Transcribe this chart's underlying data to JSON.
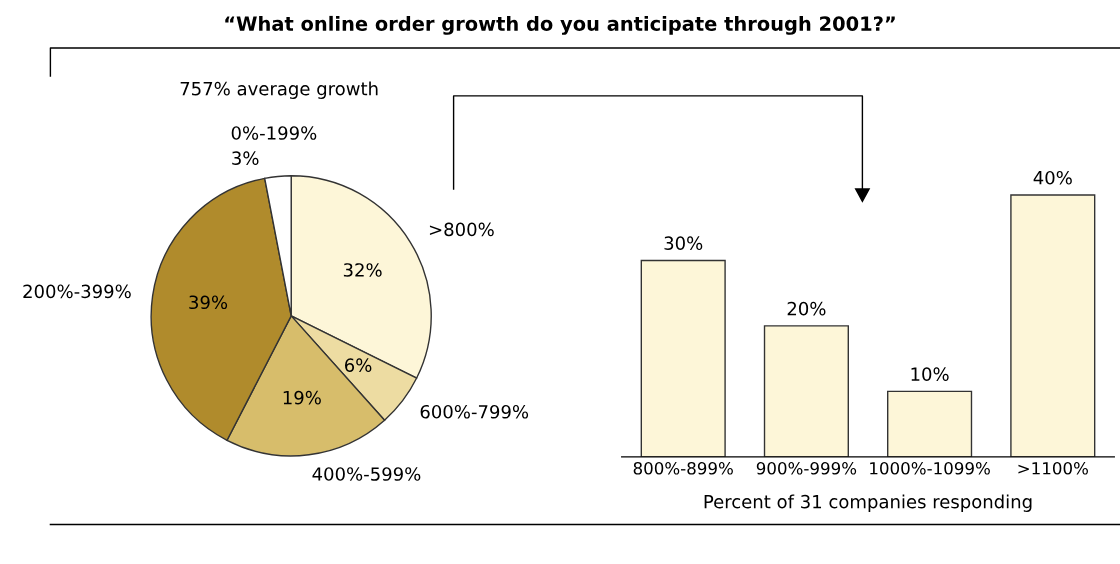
{
  "chart_data": [
    {
      "type": "pie",
      "title": "“What online order growth do you anticipate through 2001?”",
      "subtitle": "757% average growth",
      "categories": [
        ">800%",
        "600%-799%",
        "400%-599%",
        "200%-399%",
        "0%-199%"
      ],
      "values": [
        32,
        6,
        19,
        39,
        3
      ],
      "colors": [
        "#fdf6d8",
        "#eddca2",
        "#d7bd6b",
        "#b08b2c",
        "#ffffff"
      ],
      "value_labels": [
        "32%",
        "6%",
        "19%",
        "39%",
        "3%"
      ]
    },
    {
      "type": "bar",
      "categories": [
        "800%-899%",
        "900%-999%",
        "1000%-1099%",
        ">1100%"
      ],
      "values": [
        30,
        20,
        10,
        40
      ],
      "color": "#fdf6d8",
      "value_labels": [
        "30%",
        "20%",
        "10%",
        "40%"
      ],
      "xlabel": "Percent of 31 companies responding"
    }
  ]
}
